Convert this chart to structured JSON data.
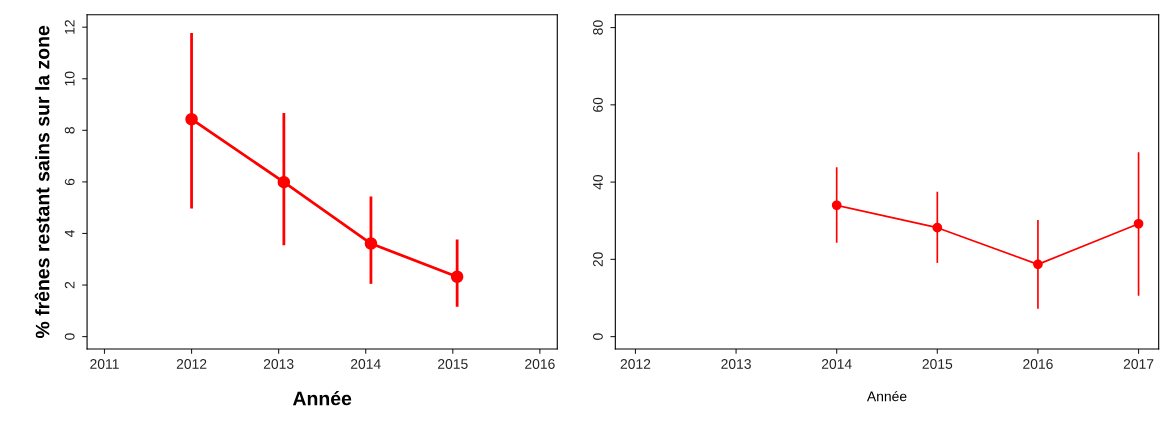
{
  "chart_data": [
    {
      "type": "line",
      "xlabel": "Année",
      "ylabel": "% frênes restant sains sur la zone",
      "x": [
        2012,
        2013.06,
        2014.06,
        2015.05
      ],
      "marker": "circle",
      "line_style": "solid",
      "grid": false,
      "legend": false,
      "series": [
        {
          "color": "#ff0000",
          "values": [
            8.43,
            5.99,
            3.61,
            2.32
          ],
          "errors": [
            [
              5.02,
              11.72
            ],
            [
              3.6,
              8.62
            ],
            [
              2.1,
              5.38
            ],
            [
              1.21,
              3.71
            ]
          ]
        }
      ],
      "xlim": [
        2010.8,
        2016.2
      ],
      "xticks": [
        2011,
        2012,
        2013,
        2014,
        2015,
        2016
      ],
      "ylim": [
        -0.48,
        12.48
      ],
      "yticks": [
        0,
        2,
        4,
        6,
        8,
        10,
        12
      ]
    },
    {
      "type": "line",
      "xlabel": "Année",
      "x": [
        2014,
        2015,
        2016,
        2017
      ],
      "marker": "circle",
      "line_style": "solid",
      "grid": false,
      "legend": false,
      "series": [
        {
          "color": "#ff0000",
          "values": [
            34.0,
            28.2,
            18.7,
            29.2
          ],
          "errors": [
            [
              24.5,
              43.6
            ],
            [
              19.3,
              37.3
            ],
            [
              7.4,
              30.0
            ],
            [
              10.8,
              47.5
            ]
          ]
        }
      ],
      "xlim": [
        2011.8,
        2017.2
      ],
      "xticks": [
        2012,
        2013,
        2014,
        2015,
        2016,
        2017
      ],
      "ylim": [
        -3.2,
        83.3
      ],
      "yticks": [
        0,
        20,
        40,
        60,
        80
      ]
    }
  ]
}
